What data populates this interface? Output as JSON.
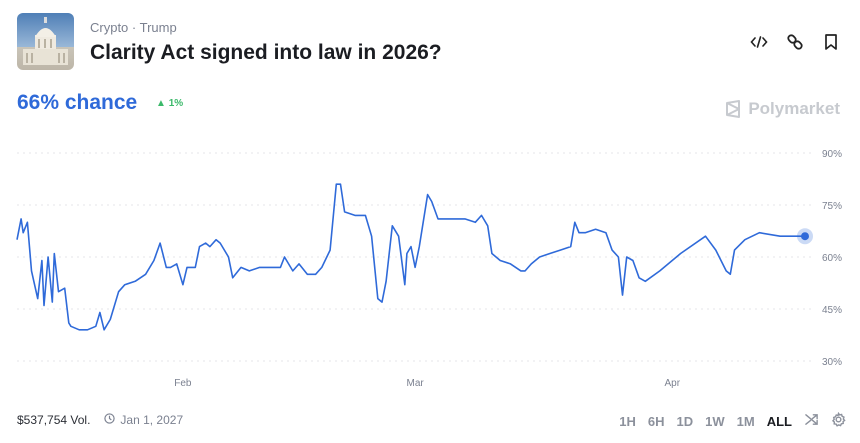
{
  "header": {
    "categories": "Crypto · Trump",
    "title": "Clarity Act signed into law in 2026?",
    "icons": [
      "code-embed-icon",
      "link-icon",
      "bookmark-icon"
    ]
  },
  "summary": {
    "chance": "66% chance",
    "delta": "1%",
    "delta_color": "#3bb96a",
    "accent": "#2f6ad9"
  },
  "brand": "Polymarket",
  "footer": {
    "volume": "$537,754 Vol.",
    "end_date": "Jan 1, 2027"
  },
  "ranges": [
    {
      "label": "1H"
    },
    {
      "label": "6H"
    },
    {
      "label": "1D"
    },
    {
      "label": "1W"
    },
    {
      "label": "1M"
    },
    {
      "label": "ALL",
      "selected": true
    }
  ],
  "chart_data": {
    "type": "line",
    "title": "",
    "xlabel": "",
    "ylabel": "",
    "ylim": [
      30,
      90
    ],
    "grid": true,
    "yticks": [
      "90%",
      "75%",
      "60%",
      "45%",
      "30%"
    ],
    "ytick_values": [
      90,
      75,
      60,
      45,
      30
    ],
    "xticks": [
      {
        "label": "Feb",
        "date": "2026-02-01"
      },
      {
        "label": "Mar",
        "date": "2026-03-01"
      },
      {
        "label": "Apr",
        "date": "2026-04-01"
      }
    ],
    "xlim": [
      "2026-01-12T00:00",
      "2026-04-17T00:00"
    ],
    "line_color": "#2f6ad9",
    "points": [
      [
        "2026-01-12T00:00",
        65
      ],
      [
        "2026-01-12T12:00",
        71
      ],
      [
        "2026-01-12T18:00",
        67
      ],
      [
        "2026-01-13T06:00",
        70
      ],
      [
        "2026-01-13T18:00",
        56
      ],
      [
        "2026-01-14T12:00",
        48
      ],
      [
        "2026-01-15T00:00",
        59
      ],
      [
        "2026-01-15T06:00",
        46
      ],
      [
        "2026-01-15T18:00",
        60
      ],
      [
        "2026-01-16T06:00",
        47
      ],
      [
        "2026-01-16T12:00",
        61
      ],
      [
        "2026-01-17T00:00",
        50
      ],
      [
        "2026-01-17T18:00",
        51
      ],
      [
        "2026-01-18T06:00",
        41
      ],
      [
        "2026-01-18T12:00",
        40
      ],
      [
        "2026-01-19T12:00",
        39
      ],
      [
        "2026-01-20T12:00",
        39
      ],
      [
        "2026-01-21T12:00",
        40
      ],
      [
        "2026-01-22T00:00",
        44
      ],
      [
        "2026-01-22T12:00",
        39
      ],
      [
        "2026-01-23T06:00",
        42
      ],
      [
        "2026-01-24T06:00",
        50
      ],
      [
        "2026-01-25T00:00",
        52
      ],
      [
        "2026-01-26T06:00",
        53
      ],
      [
        "2026-01-27T12:00",
        55
      ],
      [
        "2026-01-28T12:00",
        59
      ],
      [
        "2026-01-29T06:00",
        64
      ],
      [
        "2026-01-30T00:00",
        57
      ],
      [
        "2026-01-30T12:00",
        57
      ],
      [
        "2026-01-31T06:00",
        58
      ],
      [
        "2026-02-01T00:00",
        52
      ],
      [
        "2026-02-01T12:00",
        57
      ],
      [
        "2026-02-02T12:00",
        57
      ],
      [
        "2026-02-03T00:00",
        63
      ],
      [
        "2026-02-03T18:00",
        64
      ],
      [
        "2026-02-04T06:00",
        63
      ],
      [
        "2026-02-05T00:00",
        65
      ],
      [
        "2026-02-05T12:00",
        64
      ],
      [
        "2026-02-06T12:00",
        60
      ],
      [
        "2026-02-07T00:00",
        54
      ],
      [
        "2026-02-08T00:00",
        57
      ],
      [
        "2026-02-09T00:00",
        56
      ],
      [
        "2026-02-10T06:00",
        57
      ],
      [
        "2026-02-12T18:00",
        57
      ],
      [
        "2026-02-13T06:00",
        60
      ],
      [
        "2026-02-14T06:00",
        56
      ],
      [
        "2026-02-15T00:00",
        58
      ],
      [
        "2026-02-16T00:00",
        55
      ],
      [
        "2026-02-17T00:00",
        55
      ],
      [
        "2026-02-17T18:00",
        57
      ],
      [
        "2026-02-18T18:00",
        62
      ],
      [
        "2026-02-19T12:00",
        81
      ],
      [
        "2026-02-20T00:00",
        81
      ],
      [
        "2026-02-20T12:00",
        73
      ],
      [
        "2026-02-21T18:00",
        72
      ],
      [
        "2026-02-23T00:00",
        72
      ],
      [
        "2026-02-23T18:00",
        66
      ],
      [
        "2026-02-24T12:00",
        48
      ],
      [
        "2026-02-25T00:00",
        47
      ],
      [
        "2026-02-25T12:00",
        53
      ],
      [
        "2026-02-26T06:00",
        69
      ],
      [
        "2026-02-27T00:00",
        66
      ],
      [
        "2026-02-27T18:00",
        52
      ],
      [
        "2026-02-28T00:00",
        61
      ],
      [
        "2026-02-28T12:00",
        63
      ],
      [
        "2026-03-01T00:00",
        57
      ],
      [
        "2026-03-01T12:00",
        63
      ],
      [
        "2026-03-02T12:00",
        78
      ],
      [
        "2026-03-03T00:00",
        76
      ],
      [
        "2026-03-03T18:00",
        71
      ],
      [
        "2026-03-05T06:00",
        71
      ],
      [
        "2026-03-07T00:00",
        71
      ],
      [
        "2026-03-08T06:00",
        70
      ],
      [
        "2026-03-09T00:00",
        72
      ],
      [
        "2026-03-09T18:00",
        69
      ],
      [
        "2026-03-10T06:00",
        61
      ],
      [
        "2026-03-11T06:00",
        59
      ],
      [
        "2026-03-12T12:00",
        58
      ],
      [
        "2026-03-13T18:00",
        56
      ],
      [
        "2026-03-14T06:00",
        56
      ],
      [
        "2026-03-15T00:00",
        58
      ],
      [
        "2026-03-16T00:00",
        60
      ],
      [
        "2026-03-17T06:00",
        61
      ],
      [
        "2026-03-18T12:00",
        62
      ],
      [
        "2026-03-19T18:00",
        63
      ],
      [
        "2026-03-20T06:00",
        70
      ],
      [
        "2026-03-20T18:00",
        67
      ],
      [
        "2026-03-21T12:00",
        67
      ],
      [
        "2026-03-22T18:00",
        68
      ],
      [
        "2026-03-24T00:00",
        67
      ],
      [
        "2026-03-24T18:00",
        62
      ],
      [
        "2026-03-25T12:00",
        60
      ],
      [
        "2026-03-26T00:00",
        49
      ],
      [
        "2026-03-26T12:00",
        60
      ],
      [
        "2026-03-27T06:00",
        59
      ],
      [
        "2026-03-28T00:00",
        54
      ],
      [
        "2026-03-28T18:00",
        53
      ],
      [
        "2026-03-30T12:00",
        56
      ],
      [
        "2026-04-02T00:00",
        61
      ],
      [
        "2026-04-05T00:00",
        66
      ],
      [
        "2026-04-06T06:00",
        62
      ],
      [
        "2026-04-07T12:00",
        56
      ],
      [
        "2026-04-08T00:00",
        55
      ],
      [
        "2026-04-08T12:00",
        62
      ],
      [
        "2026-04-09T18:00",
        65
      ],
      [
        "2026-04-11T12:00",
        67
      ],
      [
        "2026-04-14T00:00",
        66
      ],
      [
        "2026-04-17T00:00",
        66
      ]
    ]
  }
}
